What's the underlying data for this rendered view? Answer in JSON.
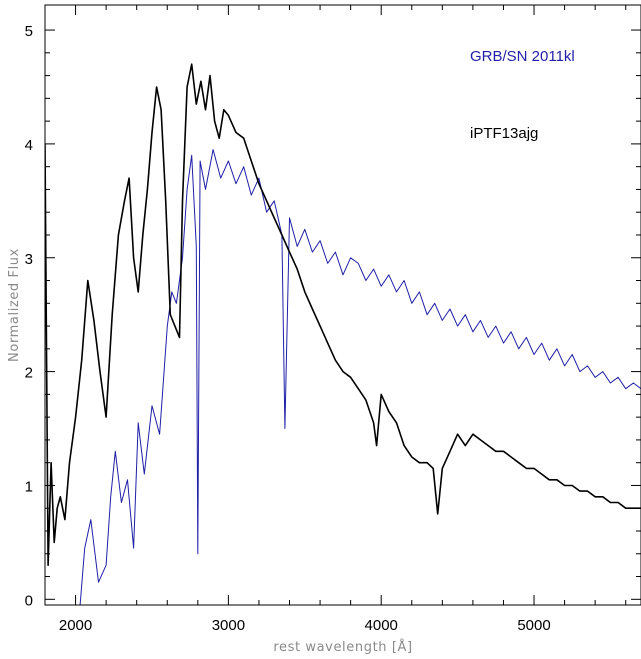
{
  "chart_data": {
    "type": "line",
    "title": "",
    "xlabel": "rest wavelength [Å]",
    "ylabel": "Normalized Flux",
    "xlim": [
      1800,
      5700
    ],
    "ylim": [
      -0.05,
      5.22
    ],
    "xticks": [
      2000,
      3000,
      4000,
      5000
    ],
    "xtick_labels": [
      "2000",
      "3000",
      "4000",
      "5000"
    ],
    "yticks": [
      0,
      1,
      2,
      3,
      4,
      5
    ],
    "ytick_labels": [
      "0",
      "1",
      "2",
      "3",
      "4",
      "5"
    ],
    "grid": false,
    "legend_position": "top-right",
    "series": [
      {
        "name": "GRB/SN 2011kl",
        "color": "#1f1fa8",
        "x": [
          2030,
          2060,
          2100,
          2150,
          2200,
          2230,
          2260,
          2300,
          2340,
          2380,
          2410,
          2450,
          2500,
          2550,
          2600,
          2630,
          2660,
          2700,
          2730,
          2760,
          2790,
          2800,
          2815,
          2850,
          2900,
          2950,
          3000,
          3050,
          3100,
          3150,
          3200,
          3250,
          3300,
          3350,
          3370,
          3400,
          3450,
          3500,
          3550,
          3600,
          3650,
          3700,
          3750,
          3800,
          3850,
          3900,
          3950,
          4000,
          4050,
          4100,
          4150,
          4200,
          4250,
          4300,
          4350,
          4400,
          4450,
          4500,
          4550,
          4600,
          4650,
          4700,
          4750,
          4800,
          4850,
          4900,
          4950,
          5000,
          5050,
          5100,
          5150,
          5200,
          5250,
          5300,
          5350,
          5400,
          5450,
          5500,
          5550,
          5600,
          5650,
          5700
        ],
        "y": [
          -0.05,
          0.45,
          0.7,
          0.15,
          0.3,
          0.9,
          1.3,
          0.85,
          1.05,
          0.45,
          1.55,
          1.1,
          1.7,
          1.45,
          2.4,
          2.7,
          2.6,
          3.0,
          3.6,
          3.9,
          3.1,
          0.4,
          3.85,
          3.6,
          3.95,
          3.7,
          3.85,
          3.65,
          3.8,
          3.55,
          3.7,
          3.4,
          3.5,
          3.2,
          1.5,
          3.35,
          3.1,
          3.25,
          3.05,
          3.15,
          2.95,
          3.05,
          2.85,
          3.0,
          2.95,
          2.8,
          2.9,
          2.75,
          2.85,
          2.7,
          2.8,
          2.6,
          2.7,
          2.5,
          2.6,
          2.45,
          2.55,
          2.4,
          2.5,
          2.35,
          2.45,
          2.3,
          2.4,
          2.25,
          2.35,
          2.2,
          2.3,
          2.15,
          2.25,
          2.1,
          2.2,
          2.05,
          2.15,
          2.0,
          2.05,
          1.95,
          2.0,
          1.9,
          1.95,
          1.85,
          1.9,
          1.85
        ]
      },
      {
        "name": "iPTF13ajg",
        "color": "#000000",
        "x": [
          1800,
          1820,
          1840,
          1860,
          1880,
          1900,
          1930,
          1960,
          2000,
          2040,
          2080,
          2120,
          2160,
          2200,
          2240,
          2280,
          2320,
          2350,
          2380,
          2410,
          2440,
          2470,
          2500,
          2530,
          2560,
          2590,
          2620,
          2650,
          2680,
          2700,
          2730,
          2760,
          2790,
          2820,
          2850,
          2880,
          2910,
          2940,
          2970,
          3000,
          3050,
          3100,
          3150,
          3200,
          3250,
          3300,
          3350,
          3400,
          3450,
          3500,
          3550,
          3600,
          3650,
          3700,
          3750,
          3800,
          3850,
          3900,
          3950,
          3970,
          4000,
          4050,
          4100,
          4150,
          4200,
          4250,
          4300,
          4340,
          4370,
          4400,
          4450,
          4500,
          4550,
          4600,
          4650,
          4700,
          4750,
          4800,
          4850,
          4900,
          4950,
          5000,
          5050,
          5100,
          5150,
          5200,
          5250,
          5300,
          5350,
          5400,
          5450,
          5500,
          5550,
          5600,
          5650,
          5700
        ],
        "y": [
          4.0,
          0.3,
          1.2,
          0.5,
          0.8,
          0.9,
          0.7,
          1.2,
          1.6,
          2.1,
          2.8,
          2.45,
          2.0,
          1.6,
          2.5,
          3.2,
          3.5,
          3.7,
          3.0,
          2.7,
          3.2,
          3.6,
          4.1,
          4.5,
          4.3,
          3.5,
          2.5,
          2.4,
          2.3,
          3.5,
          4.5,
          4.7,
          4.35,
          4.55,
          4.3,
          4.6,
          4.2,
          4.05,
          4.3,
          4.25,
          4.1,
          4.05,
          3.85,
          3.65,
          3.5,
          3.35,
          3.2,
          3.05,
          2.9,
          2.7,
          2.55,
          2.4,
          2.25,
          2.1,
          2.0,
          1.95,
          1.85,
          1.75,
          1.55,
          1.35,
          1.8,
          1.65,
          1.55,
          1.35,
          1.25,
          1.2,
          1.2,
          1.15,
          0.75,
          1.15,
          1.3,
          1.45,
          1.35,
          1.45,
          1.4,
          1.35,
          1.3,
          1.3,
          1.25,
          1.2,
          1.15,
          1.15,
          1.1,
          1.05,
          1.05,
          1.0,
          1.0,
          0.95,
          0.95,
          0.9,
          0.9,
          0.85,
          0.85,
          0.8,
          0.8,
          0.8
        ]
      }
    ]
  }
}
